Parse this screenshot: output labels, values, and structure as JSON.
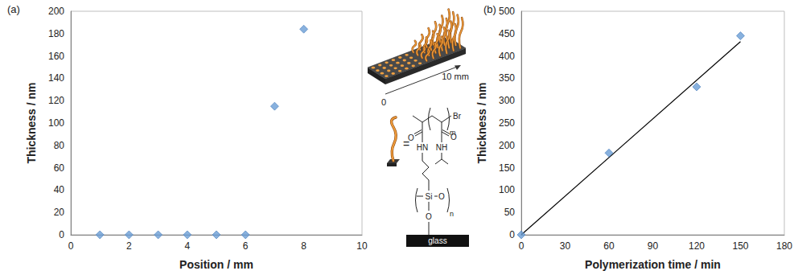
{
  "chart_data": [
    {
      "type": "scatter",
      "title": "(a)",
      "x_label": "Position / mm",
      "y_label": "Thickness / nm",
      "xlim": [
        0,
        10
      ],
      "xticks": [
        0,
        2,
        4,
        6,
        8,
        10
      ],
      "ylim": [
        0,
        200
      ],
      "yticks": [
        0,
        20,
        40,
        60,
        80,
        100,
        120,
        140,
        160,
        180,
        200
      ],
      "grid": false,
      "series": [
        {
          "x": [
            1,
            2,
            3,
            4,
            5,
            6,
            7,
            8
          ],
          "values": [
            0,
            0,
            0,
            0,
            0,
            0,
            115,
            184
          ],
          "color": "#6a9ed6",
          "marker": "diamond"
        }
      ]
    },
    {
      "type": "scatter",
      "title": "(b)",
      "x_label": "Polymerization time / min",
      "y_label": "Thickness / nm",
      "xlim": [
        0,
        180
      ],
      "xticks": [
        0,
        30,
        60,
        90,
        120,
        150,
        180
      ],
      "ylim": [
        0,
        500
      ],
      "yticks": [
        0,
        50,
        100,
        150,
        200,
        250,
        300,
        350,
        400,
        450,
        500
      ],
      "grid": false,
      "series": [
        {
          "type": "line",
          "x": [
            0,
            150
          ],
          "values": [
            0,
            432
          ],
          "color": "#000000",
          "line_style": "solid"
        },
        {
          "x": [
            0,
            60,
            120,
            150
          ],
          "values": [
            0,
            183,
            331,
            445
          ],
          "color": "#6a9ed6",
          "marker": "diamond"
        }
      ]
    }
  ],
  "illustration": {
    "scale_start": "0",
    "scale_end": "10 mm",
    "equals": "=",
    "structure": {
      "amide_1": {
        "oxygen": "O",
        "nitrogen": "HN"
      },
      "amide_2": {
        "oxygen": "O",
        "nitrogen": "NH"
      },
      "end_group": "Br",
      "repeat_polymer": "m",
      "silicon": "Si",
      "siloxane_oxygen": "O",
      "repeat_siloxane": "n",
      "anchor_oxygen": "O"
    },
    "substrate": "glass"
  }
}
